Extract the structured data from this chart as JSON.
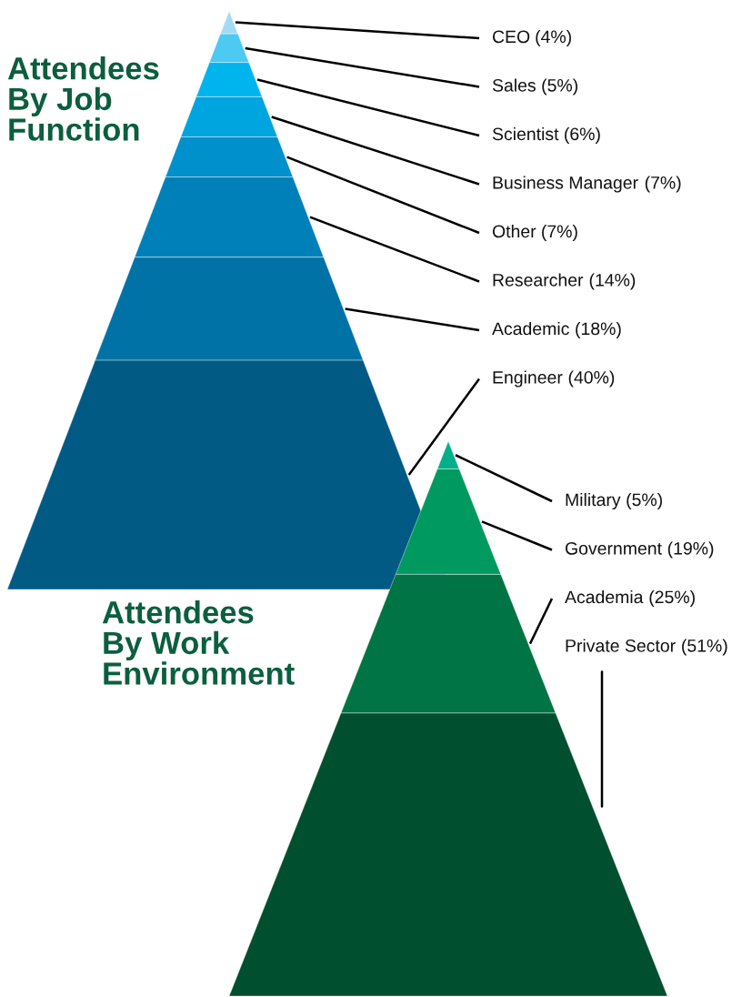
{
  "chart_data": [
    {
      "type": "other",
      "title": "Attendees\nBy Job\nFunction",
      "categories": [
        "CEO",
        "Sales",
        "Scientist",
        "Business Manager",
        "Other",
        "Researcher",
        "Academic",
        "Engineer"
      ],
      "values": [
        4,
        5,
        6,
        7,
        7,
        14,
        18,
        40
      ],
      "value_labels": [
        "(4%)",
        "(5%)",
        "(6%)",
        "(7%)",
        "(7%)",
        "(14%)",
        "(18%)",
        "(40%)"
      ],
      "colors": [
        "#a3dbf4",
        "#4dc9f2",
        "#00b5ee",
        "#00a4de",
        "#0090cb",
        "#0080b8",
        "#0072a6",
        "#005a83"
      ]
    },
    {
      "type": "other",
      "title": "Attendees\nBy Work\nEnvironment",
      "categories": [
        "Military",
        "Government",
        "Academia",
        "Private Sector"
      ],
      "values": [
        5,
        19,
        25,
        51
      ],
      "value_labels": [
        "(5%)",
        "(19%)",
        "(25%)",
        "(51%)"
      ],
      "colors": [
        "#00b08a",
        "#009a60",
        "#007444",
        "#004f2f"
      ]
    }
  ]
}
